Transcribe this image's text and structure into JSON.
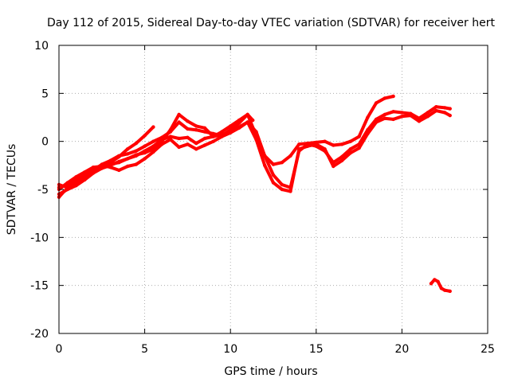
{
  "chart_data": {
    "type": "scatter",
    "title": "Day 112 of 2015, Sidereal Day-to-day VTEC variation (SDTVAR) for receiver hert",
    "xlabel": "GPS time / hours",
    "ylabel": "SDTVAR / TECUs",
    "xlim": [
      0,
      25
    ],
    "ylim": [
      -20,
      10
    ],
    "xticks": [
      0,
      5,
      10,
      15,
      20,
      25
    ],
    "yticks": [
      -20,
      -15,
      -10,
      -5,
      0,
      5,
      10
    ],
    "grid": true,
    "series_color": "#ff0000",
    "series": [
      {
        "name": "trace-1",
        "x": [
          0,
          0.3,
          0.6,
          1,
          1.5,
          2,
          2.5,
          3,
          3.5,
          4,
          4.5,
          5,
          5.5
        ],
        "y": [
          -5.8,
          -5.2,
          -4.7,
          -4.5,
          -3.9,
          -3.2,
          -2.5,
          -2.2,
          -1.6,
          -0.8,
          -0.2,
          0.6,
          1.5
        ]
      },
      {
        "name": "trace-2",
        "x": [
          0,
          0.5,
          1,
          1.5,
          2,
          2.5,
          3,
          3.5,
          4,
          4.5,
          5,
          5.5,
          6,
          6.5,
          7,
          7.5,
          8,
          8.5,
          9,
          9.5,
          10,
          10.5,
          11,
          11.3
        ],
        "y": [
          -4.5,
          -4.8,
          -4.2,
          -3.5,
          -3,
          -2.4,
          -2,
          -1.5,
          -1.3,
          -1,
          -0.5,
          0,
          0.4,
          1,
          2,
          1.3,
          1.2,
          1,
          0.8,
          0.6,
          1.2,
          1.9,
          2.8,
          2.2
        ]
      },
      {
        "name": "trace-3",
        "x": [
          0,
          0.5,
          1,
          1.5,
          2,
          2.5,
          3,
          3.5,
          4,
          4.5,
          5,
          5.5,
          6,
          6.5,
          7,
          7.5,
          8,
          8.5,
          9,
          9.5,
          10,
          10.5,
          11,
          11.5,
          12,
          12.5,
          13,
          13.5,
          14,
          14.5,
          15,
          15.5,
          16,
          16.5,
          17,
          17.5,
          18,
          18.5,
          19,
          19.5
        ],
        "y": [
          -5.5,
          -5,
          -4.6,
          -4,
          -3.3,
          -2.8,
          -2.5,
          -2.1,
          -1.8,
          -1.4,
          -1.2,
          -0.8,
          0,
          1.2,
          2.8,
          2.1,
          1.6,
          1.4,
          0.5,
          1,
          1.6,
          2.2,
          2.8,
          0.6,
          -1.5,
          -2.4,
          -2.2,
          -1.5,
          -0.3,
          -0.2,
          -0.1,
          0,
          -0.4,
          -0.3,
          0,
          0.5,
          2.5,
          4,
          4.5,
          4.7
        ]
      },
      {
        "name": "trace-4",
        "x": [
          0,
          0.5,
          1,
          1.5,
          2,
          2.5,
          3,
          3.5,
          4,
          4.5,
          5,
          5.5,
          6,
          6.5,
          7,
          7.5,
          8,
          8.5,
          9,
          9.5,
          10,
          10.5,
          11,
          11.5,
          12,
          12.5,
          13,
          13.5,
          14,
          14.5,
          15,
          15.5,
          16,
          16.5,
          17,
          17.5,
          18,
          18.5,
          19,
          19.5,
          20,
          20.5,
          21,
          21.5,
          22,
          22.5,
          22.8
        ],
        "y": [
          -5,
          -4.3,
          -3.7,
          -3.2,
          -2.7,
          -2.6,
          -2.4,
          -2.2,
          -1.8,
          -1.5,
          -1,
          -0.5,
          0.2,
          0.5,
          0.3,
          0.4,
          -0.2,
          0.3,
          0.5,
          0.7,
          1,
          1.5,
          2,
          1,
          -1.5,
          -3.5,
          -4.5,
          -4.8,
          -1,
          -0.3,
          -0.5,
          -1,
          -2.2,
          -1.6,
          -0.8,
          -0.3,
          1.2,
          2.3,
          2.8,
          3.1,
          3,
          2.9,
          2.4,
          3,
          3.6,
          3.5,
          3.4
        ]
      },
      {
        "name": "trace-5",
        "x": [
          0,
          0.5,
          1,
          1.5,
          2,
          2.5,
          3,
          3.5,
          4,
          4.5,
          5,
          5.5,
          6,
          6.5,
          7,
          7.5,
          8,
          8.5,
          9,
          9.5,
          10,
          10.5,
          11,
          11.5,
          12,
          12.5,
          13,
          13.5,
          14,
          14.5,
          15,
          15.5,
          16,
          16.5,
          17,
          17.5,
          18,
          18.5,
          19,
          19.5,
          20,
          20.5,
          21,
          21.5,
          22,
          22.5,
          22.8
        ],
        "y": [
          -4.8,
          -4.5,
          -4,
          -3.4,
          -3,
          -2.5,
          -2.7,
          -3,
          -2.6,
          -2.4,
          -1.8,
          -1.1,
          -0.3,
          0.2,
          -0.6,
          -0.3,
          -0.8,
          -0.4,
          0,
          0.5,
          0.9,
          1.4,
          2,
          0.2,
          -2.5,
          -4.3,
          -5,
          -5.2,
          -0.8,
          -0.5,
          -0.3,
          -0.8,
          -2.6,
          -2,
          -1.2,
          -0.7,
          0.8,
          2,
          2.4,
          2.3,
          2.6,
          2.7,
          2.1,
          2.6,
          3.2,
          3,
          2.7
        ]
      },
      {
        "name": "trace-6",
        "x": [
          21.7,
          21.9,
          22.1,
          22.3,
          22.5,
          22.8
        ],
        "y": [
          -14.8,
          -14.4,
          -14.6,
          -15.3,
          -15.5,
          -15.6
        ]
      }
    ]
  }
}
